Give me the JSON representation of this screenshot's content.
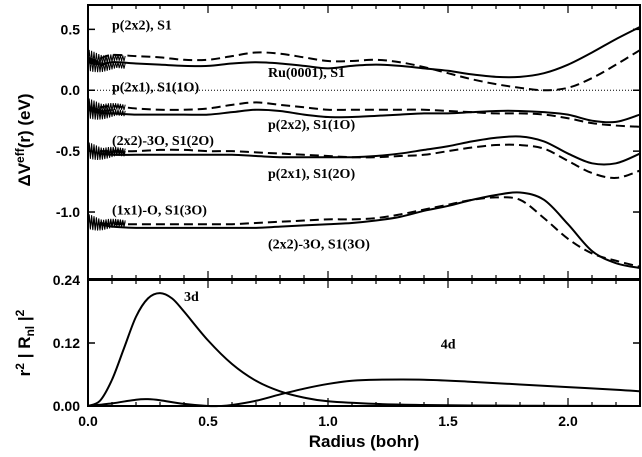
{
  "chart_data": [
    {
      "type": "line",
      "panel": "top",
      "ylabel_main": "ΔV",
      "ylabel_sup": "eff",
      "ylabel_tail": "(r)  (eV)",
      "xlim": [
        0,
        2.3
      ],
      "ylim": [
        -1.55,
        0.7
      ],
      "yticks": [
        0.5,
        0.0,
        -0.5,
        -1.0
      ],
      "ytick_labels": [
        "0.5",
        "0.0",
        "-0.5",
        "-1.0"
      ],
      "series": [
        {
          "name": "Ru(0001), S1",
          "style": "solid",
          "noise": true,
          "x": [
            0.05,
            0.1,
            0.2,
            0.3,
            0.4,
            0.5,
            0.6,
            0.7,
            0.8,
            0.9,
            1.0,
            1.1,
            1.2,
            1.3,
            1.4,
            1.5,
            1.6,
            1.7,
            1.8,
            1.9,
            2.0,
            2.1,
            2.2,
            2.3
          ],
          "y": [
            0.2,
            0.23,
            0.22,
            0.21,
            0.2,
            0.2,
            0.22,
            0.23,
            0.22,
            0.2,
            0.18,
            0.2,
            0.21,
            0.2,
            0.18,
            0.16,
            0.13,
            0.11,
            0.11,
            0.14,
            0.21,
            0.31,
            0.42,
            0.52
          ]
        },
        {
          "name": "p(2x2), S1",
          "style": "dashed",
          "noise": true,
          "x": [
            0.05,
            0.1,
            0.2,
            0.3,
            0.4,
            0.5,
            0.6,
            0.7,
            0.8,
            0.9,
            1.0,
            1.1,
            1.2,
            1.3,
            1.4,
            1.5,
            1.6,
            1.7,
            1.8,
            1.9,
            2.0,
            2.1,
            2.2,
            2.3
          ],
          "y": [
            0.26,
            0.29,
            0.28,
            0.27,
            0.25,
            0.25,
            0.28,
            0.31,
            0.3,
            0.27,
            0.24,
            0.24,
            0.25,
            0.23,
            0.19,
            0.14,
            0.09,
            0.05,
            0.02,
            0.0,
            0.02,
            0.1,
            0.21,
            0.33
          ]
        },
        {
          "name": "baseline 0.0",
          "style": "dotted",
          "noise": false,
          "x": [
            0.0,
            2.3
          ],
          "y": [
            0.0,
            0.0
          ]
        },
        {
          "name": "p(2x1), S1(1O)",
          "style": "dashed",
          "noise": true,
          "x": [
            0.05,
            0.1,
            0.2,
            0.3,
            0.4,
            0.5,
            0.6,
            0.7,
            0.8,
            0.9,
            1.0,
            1.1,
            1.2,
            1.3,
            1.4,
            1.5,
            1.6,
            1.7,
            1.8,
            1.9,
            2.0,
            2.1,
            2.2,
            2.3
          ],
          "y": [
            -0.14,
            -0.13,
            -0.15,
            -0.16,
            -0.16,
            -0.15,
            -0.12,
            -0.1,
            -0.12,
            -0.14,
            -0.16,
            -0.16,
            -0.16,
            -0.16,
            -0.16,
            -0.17,
            -0.18,
            -0.19,
            -0.19,
            -0.2,
            -0.23,
            -0.27,
            -0.29,
            -0.3
          ]
        },
        {
          "name": "p(2x2), S1(1O)",
          "style": "solid",
          "noise": true,
          "x": [
            0.05,
            0.1,
            0.2,
            0.3,
            0.4,
            0.5,
            0.6,
            0.7,
            0.8,
            0.9,
            1.0,
            1.1,
            1.2,
            1.3,
            1.4,
            1.5,
            1.6,
            1.7,
            1.8,
            1.9,
            2.0,
            2.1,
            2.2,
            2.3
          ],
          "y": [
            -0.19,
            -0.19,
            -0.2,
            -0.2,
            -0.2,
            -0.2,
            -0.18,
            -0.16,
            -0.17,
            -0.2,
            -0.22,
            -0.22,
            -0.21,
            -0.2,
            -0.19,
            -0.19,
            -0.18,
            -0.17,
            -0.17,
            -0.18,
            -0.2,
            -0.25,
            -0.26,
            -0.2
          ]
        },
        {
          "name": "(2x2)-3O, S1(2O)",
          "style": "dashed",
          "noise": true,
          "x": [
            0.05,
            0.1,
            0.2,
            0.3,
            0.4,
            0.5,
            0.6,
            0.7,
            0.8,
            0.9,
            1.0,
            1.1,
            1.2,
            1.3,
            1.4,
            1.5,
            1.6,
            1.7,
            1.8,
            1.9,
            2.0,
            2.1,
            2.2,
            2.3
          ],
          "y": [
            -0.5,
            -0.5,
            -0.5,
            -0.49,
            -0.49,
            -0.5,
            -0.5,
            -0.51,
            -0.52,
            -0.53,
            -0.54,
            -0.55,
            -0.55,
            -0.54,
            -0.53,
            -0.5,
            -0.47,
            -0.45,
            -0.45,
            -0.48,
            -0.58,
            -0.68,
            -0.72,
            -0.66
          ]
        },
        {
          "name": "p(2x1), S1(2O)",
          "style": "solid",
          "noise": true,
          "x": [
            0.05,
            0.1,
            0.2,
            0.3,
            0.4,
            0.5,
            0.6,
            0.7,
            0.8,
            0.9,
            1.0,
            1.1,
            1.2,
            1.3,
            1.4,
            1.5,
            1.6,
            1.7,
            1.8,
            1.9,
            2.0,
            2.1,
            2.2,
            2.3
          ],
          "y": [
            -0.52,
            -0.53,
            -0.53,
            -0.53,
            -0.53,
            -0.53,
            -0.53,
            -0.54,
            -0.55,
            -0.55,
            -0.55,
            -0.55,
            -0.54,
            -0.52,
            -0.49,
            -0.46,
            -0.42,
            -0.39,
            -0.38,
            -0.42,
            -0.52,
            -0.6,
            -0.6,
            -0.52
          ]
        },
        {
          "name": "(1x1)-O, S1(3O)",
          "style": "dashed",
          "noise": true,
          "x": [
            0.05,
            0.1,
            0.2,
            0.3,
            0.4,
            0.5,
            0.6,
            0.7,
            0.8,
            0.9,
            1.0,
            1.1,
            1.2,
            1.3,
            1.4,
            1.5,
            1.6,
            1.7,
            1.8,
            1.9,
            2.0,
            2.1,
            2.2,
            2.3
          ],
          "y": [
            -1.09,
            -1.1,
            -1.1,
            -1.1,
            -1.1,
            -1.1,
            -1.1,
            -1.09,
            -1.08,
            -1.07,
            -1.06,
            -1.06,
            -1.05,
            -1.02,
            -0.98,
            -0.94,
            -0.9,
            -0.88,
            -0.9,
            -1.05,
            -1.22,
            -1.34,
            -1.4,
            -1.45
          ]
        },
        {
          "name": "(2x2)-3O, S1(3O)",
          "style": "solid",
          "noise": true,
          "x": [
            0.05,
            0.1,
            0.2,
            0.3,
            0.4,
            0.5,
            0.6,
            0.7,
            0.8,
            0.9,
            1.0,
            1.1,
            1.2,
            1.3,
            1.4,
            1.5,
            1.6,
            1.7,
            1.8,
            1.9,
            2.0,
            2.1,
            2.2,
            2.3
          ],
          "y": [
            -1.1,
            -1.12,
            -1.13,
            -1.13,
            -1.13,
            -1.13,
            -1.13,
            -1.13,
            -1.12,
            -1.11,
            -1.1,
            -1.09,
            -1.07,
            -1.04,
            -0.99,
            -0.95,
            -0.9,
            -0.86,
            -0.84,
            -0.9,
            -1.1,
            -1.32,
            -1.42,
            -1.46
          ]
        }
      ],
      "annotations": [
        {
          "text": "p(2x2), S1",
          "x": 0.1,
          "y": 0.5
        },
        {
          "text": "Ru(0001), S1",
          "x": 0.75,
          "y": 0.11
        },
        {
          "text": "p(2x1), S1(1O)",
          "x": 0.1,
          "y": -0.01
        },
        {
          "text": "p(2x2), S1(1O)",
          "x": 0.75,
          "y": -0.32
        },
        {
          "text": "(2x2)-3O, S1(2O)",
          "x": 0.1,
          "y": -0.45
        },
        {
          "text": "p(2x1), S1(2O)",
          "x": 0.75,
          "y": -0.72
        },
        {
          "text": "(1x1)-O, S1(3O)",
          "x": 0.1,
          "y": -1.02
        },
        {
          "text": "(2x2)-3O, S1(3O)",
          "x": 0.75,
          "y": -1.3
        }
      ]
    },
    {
      "type": "line",
      "panel": "bottom",
      "xlabel": "Radius  (bohr)",
      "ylabel_main": "r",
      "ylabel_tail": "2",
      "ylabel_part2": " | R",
      "ylabel_sub": "nl",
      "ylabel_part3": " |",
      "ylabel_sup2": "2",
      "xlim": [
        0,
        2.3
      ],
      "ylim": [
        0,
        0.24
      ],
      "xticks": [
        0.0,
        0.5,
        1.0,
        1.5,
        2.0
      ],
      "xtick_labels": [
        "0.0",
        "0.5",
        "1.0",
        "1.5",
        "2.0"
      ],
      "yticks": [
        0.24,
        0.12,
        0.0
      ],
      "ytick_labels": [
        "0.24",
        "0.12",
        "0.00"
      ],
      "series": [
        {
          "name": "3d",
          "style": "solid",
          "x": [
            0.0,
            0.05,
            0.1,
            0.15,
            0.2,
            0.25,
            0.3,
            0.35,
            0.4,
            0.5,
            0.6,
            0.7,
            0.8,
            0.9,
            1.0,
            1.2,
            1.4,
            1.6,
            1.8,
            2.0,
            2.3
          ],
          "y": [
            0.0,
            0.01,
            0.05,
            0.11,
            0.17,
            0.205,
            0.215,
            0.205,
            0.18,
            0.125,
            0.08,
            0.048,
            0.028,
            0.016,
            0.009,
            0.004,
            0.002,
            0.001,
            0.0005,
            0.0003,
            0.0001
          ]
        },
        {
          "name": "4d",
          "style": "solid",
          "x": [
            0.0,
            0.1,
            0.2,
            0.25,
            0.3,
            0.4,
            0.5,
            0.55,
            0.6,
            0.7,
            0.8,
            0.9,
            1.0,
            1.1,
            1.2,
            1.4,
            1.6,
            1.8,
            2.0,
            2.2,
            2.3
          ],
          "y": [
            0.0,
            0.005,
            0.012,
            0.013,
            0.011,
            0.004,
            0.0,
            0.0,
            0.002,
            0.01,
            0.022,
            0.033,
            0.042,
            0.048,
            0.05,
            0.05,
            0.046,
            0.041,
            0.036,
            0.031,
            0.028
          ]
        }
      ],
      "annotations": [
        {
          "text": "3d",
          "x": 0.4,
          "y": 0.2
        },
        {
          "text": "4d",
          "x": 1.47,
          "y": 0.11
        }
      ]
    }
  ]
}
